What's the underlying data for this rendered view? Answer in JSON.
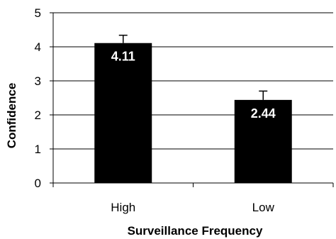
{
  "chart_data": {
    "type": "bar",
    "categories": [
      "High",
      "Low"
    ],
    "values": [
      4.11,
      2.44
    ],
    "data_labels": [
      "4.11",
      "2.44"
    ],
    "error_upper": [
      4.34,
      2.7
    ],
    "xlabel": "Surveillance Frequency",
    "ylabel": "Confidence",
    "ylim": [
      0,
      5
    ],
    "yticks": [
      0,
      1,
      2,
      3,
      4,
      5
    ],
    "ytick_labels": [
      "0",
      "1",
      "2",
      "3",
      "4",
      "5"
    ],
    "grid": true,
    "legend": false,
    "colors": {
      "bar": "#000000",
      "label": "#ffffff",
      "grid": "#000000",
      "axis": "#000000"
    }
  }
}
